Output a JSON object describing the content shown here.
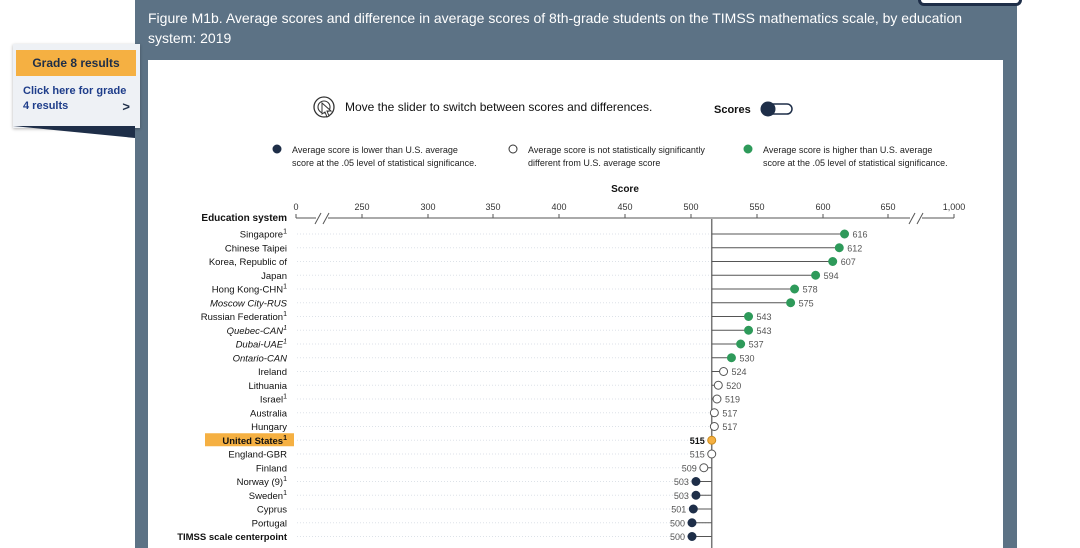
{
  "figure_title": "Figure M1b. Average scores and difference in average scores of 8th-grade students on the TIMSS mathematics scale, by education system: 2019",
  "sidebar": {
    "grade8_label": "Grade 8 results",
    "grade4_label_line1": "Click here for grade",
    "grade4_label_line2": "4 results",
    "chevron": ">"
  },
  "slider": {
    "instruction": "Move the slider to switch between scores and differences.",
    "label": "Scores",
    "icon": "slider-hand-icon"
  },
  "legend": [
    {
      "key": "lower",
      "line1": "Average score is lower than U.S. average",
      "line2": "score at the .05 level of statistical significance.",
      "color": "#1e2e48"
    },
    {
      "key": "ns",
      "line1": "Average score is not statistically significantly",
      "line2": "different from U.S. average score",
      "color": "#ffffff"
    },
    {
      "key": "higher",
      "line1": "Average score is higher than U.S. average",
      "line2": "score at the .05 level of statistical significance.",
      "color": "#2e9a5a"
    }
  ],
  "colors": {
    "lower": "#1e2e48",
    "ns": "#ffffff",
    "higher": "#2e9a5a",
    "us": "#f5b042",
    "frame": "#5c7285"
  },
  "chart_data": {
    "type": "scatter",
    "title": "",
    "xlabel": "Score",
    "ylabel": "Education system",
    "reference_value": 515,
    "x_ticks": [
      "0",
      "250",
      "300",
      "350",
      "400",
      "450",
      "500",
      "550",
      "600",
      "650",
      "1,000"
    ],
    "rows": [
      {
        "name": "Singapore",
        "sup": "1",
        "italic": false,
        "value": 616,
        "status": "higher"
      },
      {
        "name": "Chinese Taipei",
        "sup": "",
        "italic": false,
        "value": 612,
        "status": "higher"
      },
      {
        "name": "Korea, Republic of",
        "sup": "",
        "italic": false,
        "value": 607,
        "status": "higher"
      },
      {
        "name": "Japan",
        "sup": "",
        "italic": false,
        "value": 594,
        "status": "higher"
      },
      {
        "name": "Hong Kong-CHN",
        "sup": "1",
        "italic": false,
        "value": 578,
        "status": "higher"
      },
      {
        "name": "Moscow City-RUS",
        "sup": "",
        "italic": true,
        "value": 575,
        "status": "higher"
      },
      {
        "name": "Russian Federation",
        "sup": "1",
        "italic": false,
        "value": 543,
        "status": "higher"
      },
      {
        "name": "Quebec-CAN",
        "sup": "1",
        "italic": true,
        "value": 543,
        "status": "higher"
      },
      {
        "name": "Dubai-UAE",
        "sup": "1",
        "italic": true,
        "value": 537,
        "status": "higher"
      },
      {
        "name": "Ontario-CAN",
        "sup": "",
        "italic": true,
        "value": 530,
        "status": "higher"
      },
      {
        "name": "Ireland",
        "sup": "",
        "italic": false,
        "value": 524,
        "status": "ns"
      },
      {
        "name": "Lithuania",
        "sup": "",
        "italic": false,
        "value": 520,
        "status": "ns"
      },
      {
        "name": "Israel",
        "sup": "1",
        "italic": false,
        "value": 519,
        "status": "ns"
      },
      {
        "name": "Australia",
        "sup": "",
        "italic": false,
        "value": 517,
        "status": "ns"
      },
      {
        "name": "Hungary",
        "sup": "",
        "italic": false,
        "value": 517,
        "status": "ns"
      },
      {
        "name": "United States",
        "sup": "1",
        "italic": false,
        "value": 515,
        "status": "us"
      },
      {
        "name": "England-GBR",
        "sup": "",
        "italic": false,
        "value": 515,
        "status": "ns"
      },
      {
        "name": "Finland",
        "sup": "",
        "italic": false,
        "value": 509,
        "status": "ns"
      },
      {
        "name": "Norway (9)",
        "sup": "1",
        "italic": false,
        "value": 503,
        "status": "lower"
      },
      {
        "name": "Sweden",
        "sup": "1",
        "italic": false,
        "value": 503,
        "status": "lower"
      },
      {
        "name": "Cyprus",
        "sup": "",
        "italic": false,
        "value": 501,
        "status": "lower"
      },
      {
        "name": "Portugal",
        "sup": "",
        "italic": false,
        "value": 500,
        "status": "lower"
      },
      {
        "name": "TIMSS scale centerpoint",
        "sup": "",
        "italic": false,
        "bold": true,
        "value": 500,
        "status": "lower"
      }
    ]
  }
}
